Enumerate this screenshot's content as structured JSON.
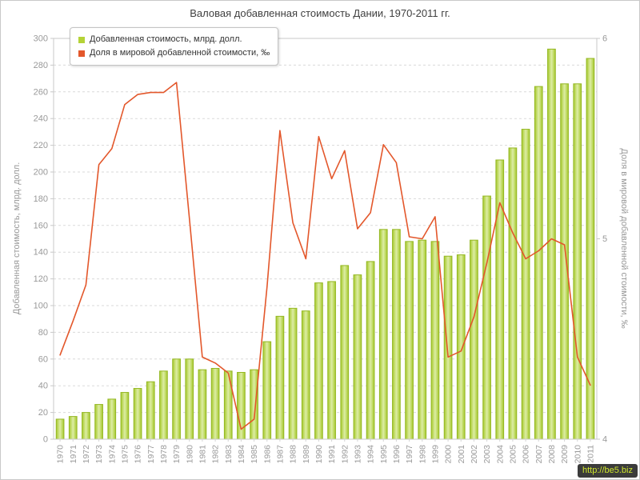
{
  "title": "Валовая добавленная стоимость Дании, 1970-2011 гг.",
  "watermark": "http://be5.biz",
  "legend": [
    {
      "label": "Добавленная стоимость, млрд. долл.",
      "color": "#b5d337"
    },
    {
      "label": "Доля в мировой добавленной стоимости, ‰",
      "color": "#e3572b"
    }
  ],
  "chart_data": {
    "type": "bar",
    "title": "Валовая добавленная стоимость Дании, 1970-2011 гг.",
    "categories": [
      "1970",
      "1971",
      "1972",
      "1973",
      "1974",
      "1975",
      "1976",
      "1977",
      "1978",
      "1979",
      "1980",
      "1981",
      "1982",
      "1983",
      "1984",
      "1985",
      "1986",
      "1987",
      "1988",
      "1989",
      "1990",
      "1991",
      "1992",
      "1993",
      "1994",
      "1995",
      "1996",
      "1997",
      "1998",
      "1999",
      "2000",
      "2001",
      "2002",
      "2003",
      "2004",
      "2005",
      "2006",
      "2007",
      "2008",
      "2009",
      "2010",
      "2011"
    ],
    "series": [
      {
        "name": "Добавленная стоимость, млрд. долл.",
        "type": "bar",
        "axis": "left",
        "color": "#b5d337",
        "values": [
          15,
          17,
          20,
          26,
          30,
          35,
          38,
          43,
          51,
          60,
          60,
          52,
          53,
          51,
          50,
          52,
          73,
          92,
          98,
          96,
          117,
          118,
          130,
          123,
          133,
          157,
          157,
          148,
          149,
          148,
          137,
          138,
          149,
          182,
          209,
          218,
          232,
          264,
          292,
          266,
          266,
          285
        ]
      },
      {
        "name": "Доля в мировой добавленной стоимости, ‰",
        "type": "line",
        "axis": "right",
        "color": "#e3572b",
        "values": [
          4.42,
          4.59,
          4.77,
          5.37,
          5.45,
          5.67,
          5.72,
          5.73,
          5.73,
          5.78,
          5.1,
          4.41,
          4.38,
          4.33,
          4.05,
          4.1,
          4.76,
          5.54,
          5.08,
          4.9,
          5.51,
          5.3,
          5.44,
          5.05,
          5.13,
          5.47,
          5.38,
          5.01,
          5.0,
          5.11,
          4.41,
          4.44,
          4.61,
          4.88,
          5.18,
          5.03,
          4.9,
          4.94,
          5.0,
          4.97,
          4.41,
          4.27
        ]
      }
    ],
    "left_axis": {
      "title": "Добавленная стоимость, млрд. долл.",
      "min": 0,
      "max": 300,
      "step": 20
    },
    "right_axis": {
      "title": "Доля в мировой добавленной стоимости, ‰",
      "min": 4,
      "max": 6,
      "step": 1
    },
    "grid": "horizontal-dashed",
    "legend_position": "top-left"
  }
}
